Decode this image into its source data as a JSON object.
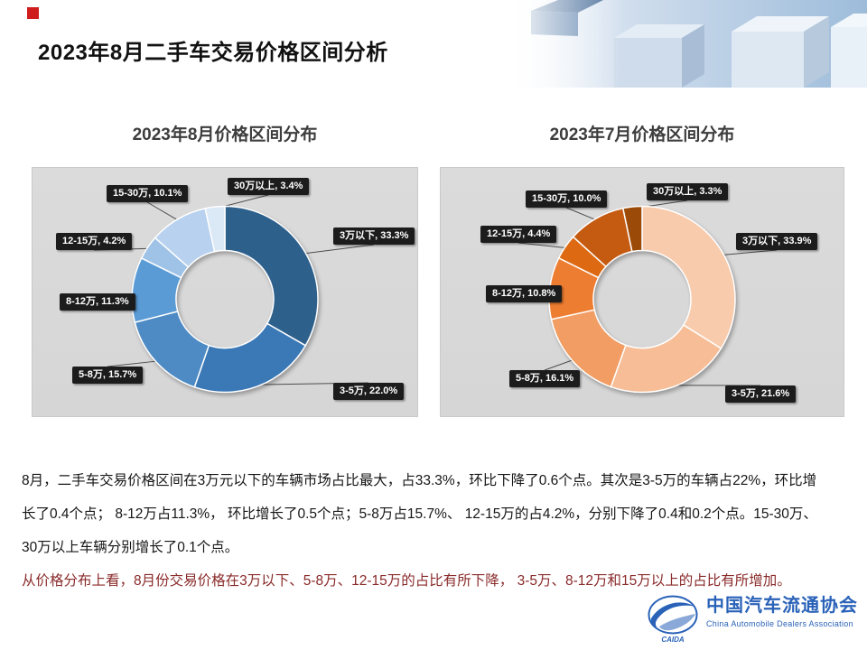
{
  "slide": {
    "title": "2023年8月二手车交易价格区间分析"
  },
  "chart_data": [
    {
      "type": "donut",
      "title": "2023年8月价格区间分布",
      "unit": "%",
      "categories": [
        "3万以下",
        "3-5万",
        "5-8万",
        "8-12万",
        "12-15万",
        "15-30万",
        "30万以上"
      ],
      "values": [
        33.3,
        22.0,
        15.7,
        11.3,
        4.2,
        10.1,
        3.4
      ],
      "labels": [
        "3万以下, 33.3%",
        "3-5万, 22.0%",
        "5-8万, 15.7%",
        "8-12万, 11.3%",
        "12-15万, 4.2%",
        "15-30万, 10.1%",
        "30万以上, 3.4%"
      ],
      "colors": [
        "#2e608c",
        "#3a78b6",
        "#4e8bc4",
        "#5b9bd5",
        "#9fc3e7",
        "#b7d1ee",
        "#dbe8f6"
      ],
      "start_angle_deg": -90,
      "direction": "clockwise",
      "legend": "none",
      "label_style": "black-callout-boxes"
    },
    {
      "type": "donut",
      "title": "2023年7月价格区间分布",
      "unit": "%",
      "categories": [
        "3万以下",
        "3-5万",
        "5-8万",
        "8-12万",
        "12-15万",
        "15-30万",
        "30万以上"
      ],
      "values": [
        33.9,
        21.6,
        16.1,
        10.8,
        4.4,
        10.0,
        3.3
      ],
      "labels": [
        "3万以下, 33.9%",
        "3-5万, 21.6%",
        "5-8万, 16.1%",
        "8-12万, 10.8%",
        "12-15万, 4.4%",
        "15-30万, 10.0%",
        "30万以上, 3.3%"
      ],
      "colors": [
        "#f8cbad",
        "#f6bd96",
        "#f19d63",
        "#ed7d31",
        "#dd6a13",
        "#c55a11",
        "#9c4a07"
      ],
      "start_angle_deg": -90,
      "direction": "clockwise",
      "legend": "none",
      "label_style": "black-callout-boxes"
    }
  ],
  "body": {
    "lines": [
      "8月，二手车交易价格区间在3万元以下的车辆市场占比最大，占33.3%，环比下降了0.6个点。其次是3-5万的车辆占22%，环比增",
      "长了0.4个点； 8-12万占11.3%， 环比增长了0.5个点；5-8万占15.7%、 12-15万的占4.2%，分别下降了0.4和0.2个点。15-30万、",
      "30万以上车辆分别增长了0.1个点。",
      "从价格分布上看，8月份交易价格在3万以下、5-8万、12-15万的占比有所下降， 3-5万、8-12万和15万以上的占比有所增加。"
    ]
  },
  "footer": {
    "org_cn": "中国汽车流通协会",
    "org_en": "China Automobile Dealers Association",
    "logo_caption": "CAIDA"
  },
  "colors": {
    "title-text": "#111111",
    "body-text": "#161616",
    "highlight-text": "#8a2a2a",
    "chart-title": "#3d3d3d",
    "label-bg": "#1c1c1c",
    "label-text": "#ffffff",
    "panel-bg": "#d6d6d6",
    "accent-red": "#cf1d1d",
    "logo-blue": "#2a62b8"
  }
}
